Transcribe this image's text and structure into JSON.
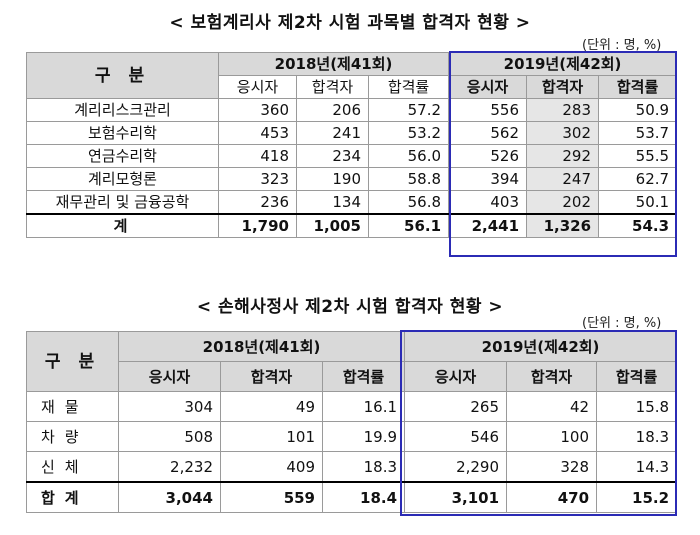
{
  "table1": {
    "title": "< 보험계리사 제2차 시험 과목별 합격자 현황 >",
    "unit": "(단위 : 명, %)",
    "header_label": "구 분",
    "years": [
      "2018년(제41회)",
      "2019년(제42회)"
    ],
    "subheaders": [
      "응시자",
      "합격자",
      "합격률",
      "응시자",
      "합격자",
      "합격률"
    ],
    "rows": [
      {
        "label": "계리리스크관리",
        "values": [
          "360",
          "206",
          "57.2",
          "556",
          "283",
          "50.9"
        ]
      },
      {
        "label": "보험수리학",
        "values": [
          "453",
          "241",
          "53.2",
          "562",
          "302",
          "53.7"
        ]
      },
      {
        "label": "연금수리학",
        "values": [
          "418",
          "234",
          "56.0",
          "526",
          "292",
          "55.5"
        ]
      },
      {
        "label": "계리모형론",
        "values": [
          "323",
          "190",
          "58.8",
          "394",
          "247",
          "62.7"
        ]
      },
      {
        "label": "재무관리 및 금융공학",
        "values": [
          "236",
          "134",
          "56.8",
          "403",
          "202",
          "50.1"
        ]
      }
    ],
    "total": {
      "label": "계",
      "values": [
        "1,790",
        "1,005",
        "56.1",
        "2,441",
        "1,326",
        "54.3"
      ]
    }
  },
  "table2": {
    "title": "< 손해사정사 제2차 시험 합격자 현황 >",
    "unit": "(단위 : 명, %)",
    "header_label": "구 분",
    "years": [
      "2018년(제41회)",
      "2019년(제42회)"
    ],
    "subheaders": [
      "응시자",
      "합격자",
      "합격률",
      "응시자",
      "합격자",
      "합격률"
    ],
    "rows": [
      {
        "label": "재물",
        "values": [
          "304",
          "49",
          "16.1",
          "265",
          "42",
          "15.8"
        ]
      },
      {
        "label": "차량",
        "values": [
          "508",
          "101",
          "19.9",
          "546",
          "100",
          "18.3"
        ]
      },
      {
        "label": "신체",
        "values": [
          "2,232",
          "409",
          "18.3",
          "2,290",
          "328",
          "14.3"
        ]
      }
    ],
    "total": {
      "label": "합계",
      "values": [
        "3,044",
        "559",
        "18.4",
        "3,101",
        "470",
        "15.2"
      ]
    }
  }
}
